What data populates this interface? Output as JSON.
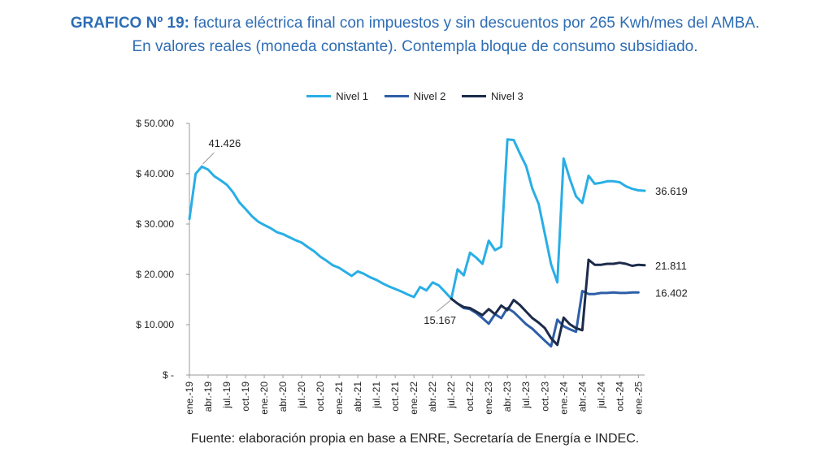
{
  "header": {
    "title_bold": "GRAFICO Nº 19:",
    "title_rest": " factura eléctrica final con impuestos y sin descuentos por 265 Kwh/mes del AMBA.",
    "title_line2": "En valores reales (moneda constante). Contempla bloque de consumo subsidiado."
  },
  "footer": {
    "source": "Fuente: elaboración propia en base a ENRE, Secretaría de Energía e INDEC."
  },
  "colors": {
    "nivel1": "#29aee6",
    "nivel2": "#2e5ea8",
    "nivel3": "#1c2b4a",
    "axis": "#999999",
    "callout": "#999999"
  },
  "chart_data": {
    "type": "line",
    "title": "",
    "xlabel": "",
    "ylabel": "",
    "ylim": [
      0,
      50000
    ],
    "yticks": [
      0,
      10000,
      20000,
      30000,
      40000,
      50000
    ],
    "ytick_labels": [
      "$ -",
      "$ 10.000",
      "$ 20.000",
      "$ 30.000",
      "$ 40.000",
      "$ 50.000"
    ],
    "grid": false,
    "legend": "top-center",
    "x_tick_labels": [
      "ene.-19",
      "abr.-19",
      "jul.-19",
      "oct.-19",
      "ene.-20",
      "abr.-20",
      "jul.-20",
      "oct.-20",
      "ene.-21",
      "abr.-21",
      "jul.-21",
      "oct.-21",
      "ene.-22",
      "abr.-22",
      "jul.-22",
      "oct.-22",
      "ene.-23",
      "abr.-23",
      "jul.-23",
      "oct.-23",
      "ene.-24",
      "abr.-24",
      "jul.-24",
      "oct.-24",
      "ene.-25"
    ],
    "x_start": "ene.-19",
    "n_months": 74,
    "series": [
      {
        "name": "Nivel 1",
        "start_index": 0,
        "values": [
          31000,
          40000,
          41426,
          40800,
          39500,
          38700,
          37800,
          36300,
          34300,
          33000,
          31600,
          30500,
          29800,
          29200,
          28400,
          28000,
          27400,
          26800,
          26300,
          25400,
          24600,
          23500,
          22700,
          21800,
          21300,
          20500,
          19700,
          20600,
          20100,
          19400,
          18900,
          18200,
          17600,
          17100,
          16600,
          16000,
          15500,
          17500,
          16800,
          18400,
          17800,
          16500,
          15167,
          21000,
          19800,
          24300,
          23300,
          22100,
          26700,
          24800,
          25500,
          46800,
          46700,
          44000,
          41500,
          37000,
          34000,
          28000,
          22000,
          18400,
          43000,
          39000,
          35500,
          34200,
          39600,
          38000,
          38200,
          38500,
          38500,
          38300,
          37500,
          37000,
          36700,
          36619
        ]
      },
      {
        "name": "Nivel 2",
        "start_index": 42,
        "values": [
          15167,
          14200,
          13300,
          13100,
          12300,
          11300,
          10200,
          12100,
          11300,
          13300,
          12500,
          11300,
          10100,
          9200,
          8000,
          6800,
          5700,
          11000,
          9700,
          9100,
          8600,
          16700,
          16100,
          16100,
          16300,
          16300,
          16400,
          16300,
          16300,
          16400,
          16402
        ]
      },
      {
        "name": "Nivel 3",
        "start_index": 42,
        "values": [
          15167,
          14200,
          13500,
          13300,
          12600,
          11900,
          13100,
          12100,
          13800,
          12900,
          14900,
          13900,
          12600,
          11300,
          10400,
          9300,
          7300,
          6000,
          11400,
          10100,
          9300,
          8900,
          22900,
          21900,
          21900,
          22100,
          22100,
          22300,
          22100,
          21700,
          21900,
          21811
        ]
      }
    ],
    "annotations": [
      {
        "label": "41.426",
        "series": "Nivel 1",
        "index": 2
      },
      {
        "label": "15.167",
        "series": "Nivel 1",
        "index": 42
      },
      {
        "label": "36.619",
        "series": "Nivel 1",
        "index": 73
      },
      {
        "label": "21.811",
        "series": "Nivel 3",
        "index": 73
      },
      {
        "label": "16.402",
        "series": "Nivel 2",
        "index": 72
      }
    ]
  }
}
